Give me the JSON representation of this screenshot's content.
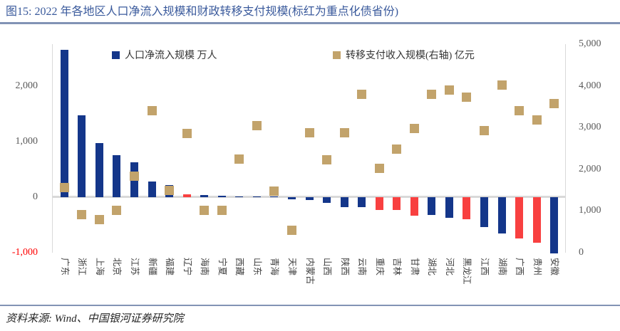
{
  "title": "图15: 2022 年各地区人口净流入规模和财政转移支付规模(标红为重点化债省份)",
  "footer": "资料来源: Wind、中国银河证券研究院",
  "colors": {
    "title_blue": "#3a5a9c",
    "divider_blue": "#8293b5",
    "bar_blue": "#14368a",
    "bar_red": "#f84040",
    "square_tan": "#c2a36b",
    "tick_gray": "#595959",
    "negative_tick_red": "#ff0000",
    "zero_line_gray": "#d9d9d9"
  },
  "chart_data": {
    "type": "bar",
    "subtype": "combo-bar-with-square-markers",
    "categories": [
      "广东",
      "浙江",
      "上海",
      "北京",
      "江苏",
      "新疆",
      "福建",
      "辽宁",
      "海南",
      "宁夏",
      "西藏",
      "山东",
      "青海",
      "天津",
      "内蒙古",
      "山西",
      "陕西",
      "云南",
      "重庆",
      "吉林",
      "甘肃",
      "湖北",
      "河北",
      "黑龙江",
      "江西",
      "湖南",
      "广西",
      "贵州",
      "安徽"
    ],
    "series": [
      {
        "name": "人口净流入规模 万人",
        "type": "bar",
        "axis": "left",
        "unit": "万人",
        "values": [
          2650,
          1470,
          970,
          750,
          630,
          280,
          220,
          50,
          40,
          25,
          15,
          15,
          5,
          -40,
          -55,
          -110,
          -180,
          -180,
          -230,
          -230,
          -330,
          -320,
          -370,
          -400,
          -540,
          -650,
          -740,
          -820,
          -1010
        ],
        "red_categories": [
          "辽宁",
          "重庆",
          "吉林",
          "甘肃",
          "黑龙江",
          "广西",
          "贵州"
        ]
      },
      {
        "name": "转移支付收入规模(右轴) 亿元",
        "type": "scatter_square",
        "axis": "right",
        "unit": "亿元",
        "values": [
          1560,
          920,
          800,
          1020,
          1830,
          3410,
          1490,
          2850,
          1010,
          1010,
          2250,
          3050,
          1480,
          530,
          2870,
          2230,
          2880,
          3800,
          2030,
          2490,
          2970,
          3790,
          3900,
          3730,
          2920,
          4020,
          3410,
          3190,
          3580
        ]
      }
    ],
    "left_axis": {
      "range": [
        -1000,
        2750
      ],
      "ticks": [
        2000,
        1000,
        0,
        -1000
      ]
    },
    "right_axis": {
      "range": [
        0,
        5000
      ],
      "ticks": [
        5000,
        4000,
        3000,
        2000,
        1000,
        0
      ]
    },
    "legend_position": "top",
    "grid": "zero-line-only"
  }
}
